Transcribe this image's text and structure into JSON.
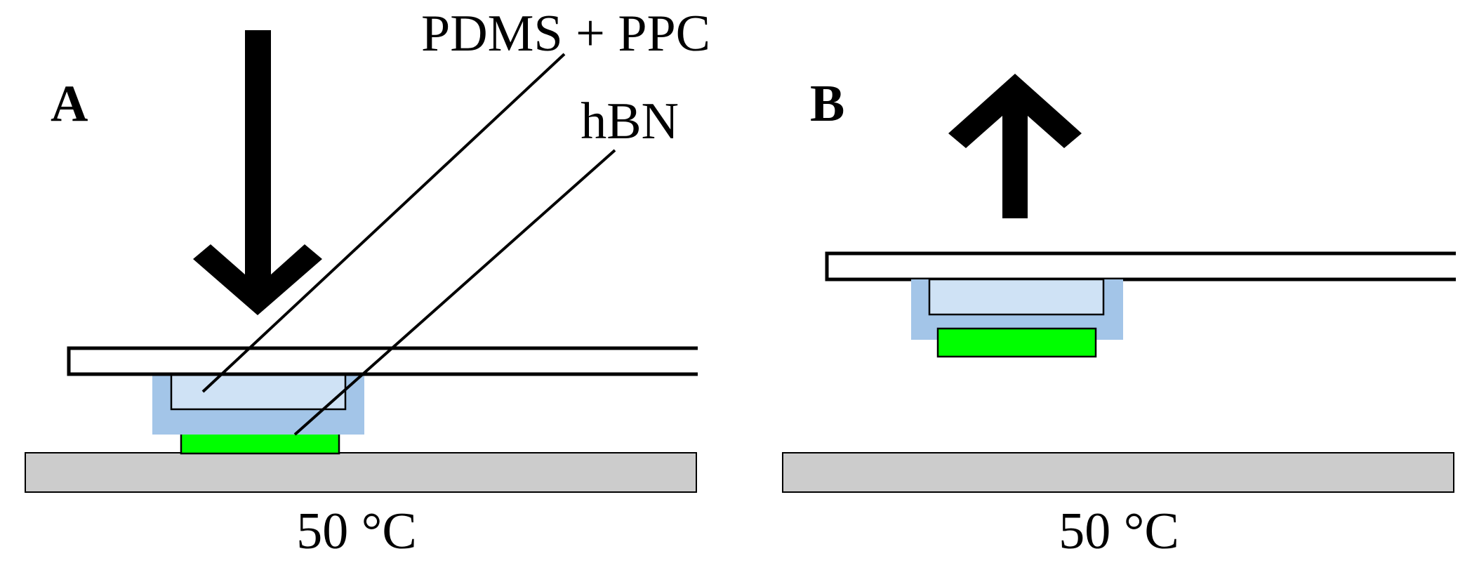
{
  "panels": [
    {
      "label": "A",
      "callouts": [
        "PDMS + PPC",
        "hBN"
      ],
      "temperature": "50 °C",
      "arrow_direction": "down"
    },
    {
      "label": "B",
      "temperature": "50 °C",
      "arrow_direction": "up"
    }
  ],
  "colors": {
    "pdms_ppc_outer": "#a3c5e8",
    "pdms_ppc_inner": "#cfe2f5",
    "hbn": "#00ff00",
    "substrate": "#cccccc",
    "outline": "#000000"
  }
}
